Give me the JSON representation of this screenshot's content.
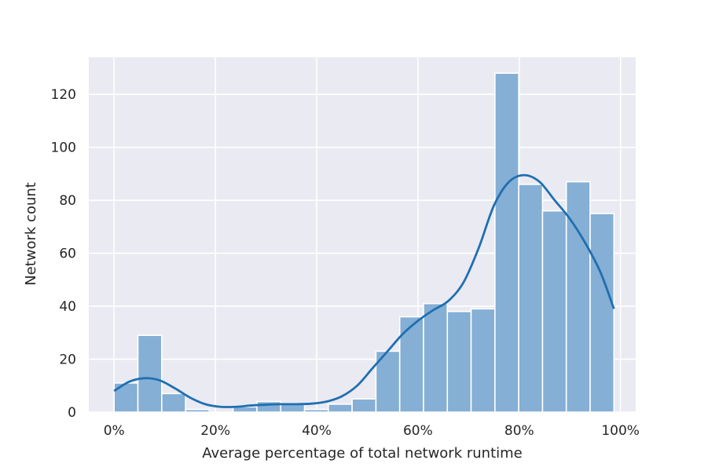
{
  "chart_data": {
    "type": "bar",
    "title": "",
    "xlabel": "Average percentage of total network runtime",
    "ylabel": "Network count",
    "xlim": [
      -5,
      103
    ],
    "ylim": [
      0,
      134
    ],
    "grid": true,
    "legend": "none",
    "x_ticks": [
      0,
      20,
      40,
      60,
      80,
      100
    ],
    "x_tick_labels": [
      "0%",
      "20%",
      "40%",
      "60%",
      "80%",
      "100%"
    ],
    "y_ticks": [
      0,
      20,
      40,
      60,
      80,
      100,
      120
    ],
    "y_tick_labels": [
      "0",
      "20",
      "40",
      "60",
      "80",
      "100",
      "120"
    ],
    "bin_edges": [
      0,
      4.7,
      9.4,
      14.1,
      18.8,
      23.5,
      28.2,
      32.9,
      37.6,
      42.3,
      47.0,
      51.7,
      56.4,
      61.1,
      65.8,
      70.5,
      75.2,
      79.9,
      84.6,
      89.3,
      94.0,
      98.7
    ],
    "counts": [
      11,
      29,
      7,
      1,
      0,
      2,
      4,
      3,
      1,
      3,
      5,
      23,
      36,
      41,
      38,
      39,
      128,
      86,
      76,
      87,
      75
    ],
    "kde": {
      "x": [
        0,
        3,
        6,
        9,
        12,
        15,
        18,
        21,
        24,
        27,
        30,
        33,
        36,
        39,
        42,
        45,
        48,
        51,
        54,
        57,
        60,
        63,
        66,
        69,
        72,
        75,
        78,
        81,
        84,
        87,
        90,
        93,
        96,
        98.7
      ],
      "y": [
        8,
        11.5,
        12.8,
        12,
        9,
        5.5,
        3,
        2,
        2,
        2.5,
        2.8,
        3,
        3,
        3.2,
        4,
        6,
        10,
        16.5,
        23,
        29.5,
        34.5,
        38.5,
        42,
        49,
        62,
        78,
        87,
        89.5,
        87,
        80,
        73,
        64,
        53,
        39
      ]
    },
    "colors": {
      "bar_fill": "#85afd4",
      "bar_edge": "#ffffff",
      "kde_line": "#1f6fb1",
      "plot_background": "#eaeaf2",
      "grid": "#ffffff",
      "text": "#262626"
    }
  }
}
